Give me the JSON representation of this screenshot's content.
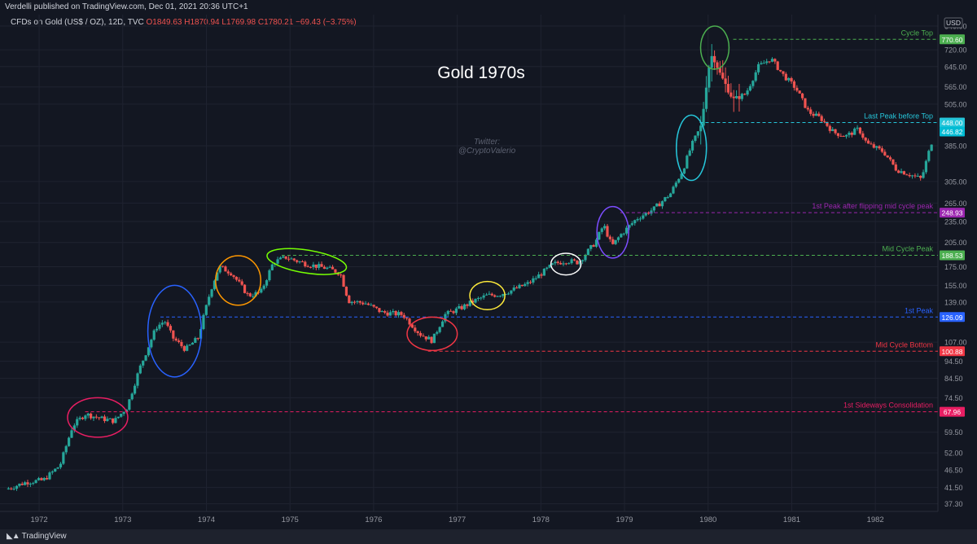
{
  "header": {
    "publisher": "Verdelli published on TradingView.com, Dec 01, 2021 20:36 UTC+1",
    "symbol": "CFDs on Gold (US$ / OZ), 12D, TVC",
    "open": "O1849.63",
    "high": "H1870.94",
    "low": "L1769.98",
    "close": "C1780.21",
    "change": "−69.43 (−3.75%)"
  },
  "footer": {
    "brand": "TradingView",
    "logo": "tradingview-logo-icon"
  },
  "chart_data": {
    "type": "candlestick",
    "title": "Gold 1970s",
    "watermark": [
      "Twitter:",
      "@CryptoValerio"
    ],
    "y_scale": "log",
    "ylim": [
      35.5,
      905
    ],
    "currency_label": "USD",
    "y_ticks": [
      "840.00",
      "720.00",
      "645.00",
      "565.00",
      "505.00",
      "385.00",
      "305.00",
      "265.00",
      "235.00",
      "205.00",
      "175.00",
      "155.00",
      "139.00",
      "107.00",
      "94.50",
      "84.50",
      "74.50",
      "59.50",
      "52.00",
      "46.50",
      "41.50",
      "37.30"
    ],
    "x_ticks": [
      "1972",
      "1973",
      "1974",
      "1975",
      "1976",
      "1977",
      "1978",
      "1979",
      "1980",
      "1981",
      "1982"
    ],
    "xlim": [
      1971.6,
      1982.68
    ],
    "anchor_prices": [
      [
        1971.6,
        41
      ],
      [
        1971.85,
        43
      ],
      [
        1972.05,
        43.5
      ],
      [
        1972.25,
        48
      ],
      [
        1972.4,
        62
      ],
      [
        1972.55,
        67
      ],
      [
        1972.75,
        65
      ],
      [
        1972.9,
        64
      ],
      [
        1973.05,
        70
      ],
      [
        1973.2,
        90
      ],
      [
        1973.4,
        118
      ],
      [
        1973.5,
        123
      ],
      [
        1973.6,
        110
      ],
      [
        1973.75,
        102
      ],
      [
        1973.9,
        110
      ],
      [
        1974.05,
        150
      ],
      [
        1974.15,
        175
      ],
      [
        1974.3,
        168
      ],
      [
        1974.5,
        145
      ],
      [
        1974.65,
        148
      ],
      [
        1974.8,
        180
      ],
      [
        1974.95,
        186
      ],
      [
        1975.2,
        178
      ],
      [
        1975.45,
        173
      ],
      [
        1975.6,
        168
      ],
      [
        1975.7,
        140
      ],
      [
        1975.9,
        138
      ],
      [
        1976.1,
        130
      ],
      [
        1976.35,
        128
      ],
      [
        1976.55,
        113
      ],
      [
        1976.7,
        108
      ],
      [
        1976.85,
        128
      ],
      [
        1977.05,
        134
      ],
      [
        1977.2,
        140
      ],
      [
        1977.35,
        145
      ],
      [
        1977.5,
        146
      ],
      [
        1977.65,
        150
      ],
      [
        1977.85,
        157
      ],
      [
        1978.0,
        167
      ],
      [
        1978.15,
        178
      ],
      [
        1978.3,
        182
      ],
      [
        1978.45,
        180
      ],
      [
        1978.65,
        205
      ],
      [
        1978.75,
        230
      ],
      [
        1978.85,
        200
      ],
      [
        1978.95,
        215
      ],
      [
        1979.15,
        240
      ],
      [
        1979.35,
        255
      ],
      [
        1979.55,
        282
      ],
      [
        1979.7,
        330
      ],
      [
        1979.8,
        385
      ],
      [
        1979.92,
        440
      ],
      [
        1980.0,
        630
      ],
      [
        1980.05,
        700
      ],
      [
        1980.15,
        610
      ],
      [
        1980.3,
        520
      ],
      [
        1980.45,
        540
      ],
      [
        1980.6,
        645
      ],
      [
        1980.75,
        680
      ],
      [
        1980.9,
        610
      ],
      [
        1981.05,
        560
      ],
      [
        1981.2,
        480
      ],
      [
        1981.35,
        460
      ],
      [
        1981.5,
        420
      ],
      [
        1981.65,
        410
      ],
      [
        1981.8,
        430
      ],
      [
        1981.9,
        390
      ],
      [
        1982.1,
        370
      ],
      [
        1982.25,
        330
      ],
      [
        1982.4,
        320
      ],
      [
        1982.55,
        310
      ],
      [
        1982.68,
        400
      ]
    ],
    "levels": [
      {
        "label": "Cycle Top",
        "price": 770.6,
        "price_label": "770.60",
        "color": "#4caf50",
        "from_x": 1980.3
      },
      {
        "label": "Last Peak before Top",
        "price": 448.0,
        "price_label": "448.00",
        "color": "#26c6da",
        "from_x": 1979.9,
        "secondary_label": "446.82"
      },
      {
        "label": "1st Peak after flipping mid cycle peak",
        "price": 248.93,
        "price_label": "248.93",
        "color": "#9c27b0",
        "from_x": 1978.95
      },
      {
        "label": "Mid Cycle Peak",
        "price": 188.53,
        "price_label": "188.53",
        "color": "#4caf50",
        "from_x": 1974.9
      },
      {
        "label": "1st Peak",
        "price": 126.09,
        "price_label": "126.09",
        "color": "#2962ff",
        "from_x": 1973.45
      },
      {
        "label": "Mid Cycle Bottom",
        "price": 100.88,
        "price_label": "100.88",
        "color": "#f23645",
        "from_x": 1976.65
      },
      {
        "label": "1st Sideways Consolidation",
        "price": 67.96,
        "price_label": "67.96",
        "color": "#e91e63",
        "from_x": 1972.55
      }
    ],
    "secondary_price_color": "#00bcd4",
    "ellipses": [
      {
        "cx": 1972.7,
        "cy": 65.5,
        "rx": 0.36,
        "ry": 9,
        "color": "#e91e63"
      },
      {
        "cx": 1973.62,
        "cy": 115,
        "rx": 0.32,
        "ry": 40,
        "color": "#2962ff"
      },
      {
        "cx": 1974.38,
        "cy": 160,
        "rx": 0.27,
        "ry": 28,
        "color": "#ff9800"
      },
      {
        "cx": 1975.2,
        "cy": 181,
        "rx": 0.48,
        "ry": 14,
        "color": "#76ff03"
      },
      {
        "cx": 1976.7,
        "cy": 113,
        "rx": 0.3,
        "ry": 13,
        "color": "#f23645"
      },
      {
        "cx": 1977.36,
        "cy": 145,
        "rx": 0.21,
        "ry": 14,
        "color": "#ffeb3b"
      },
      {
        "cx": 1978.3,
        "cy": 178,
        "rx": 0.18,
        "ry": 13,
        "color": "#ffffff"
      },
      {
        "cx": 1978.86,
        "cy": 219,
        "rx": 0.19,
        "ry": 40,
        "color": "#7c4dff"
      },
      {
        "cx": 1979.8,
        "cy": 380,
        "rx": 0.18,
        "ry": 90,
        "color": "#26c6da"
      },
      {
        "cx": 1980.08,
        "cy": 730,
        "rx": 0.17,
        "ry": 110,
        "color": "#4caf50"
      }
    ],
    "up_color": "#26a69a",
    "down_color": "#ef5350"
  }
}
